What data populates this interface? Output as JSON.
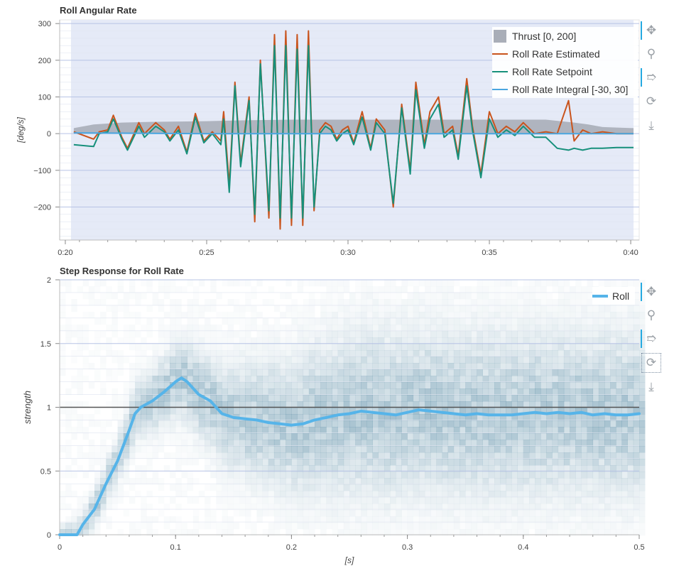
{
  "chart_data": [
    {
      "type": "line",
      "title": "Roll Angular Rate",
      "ylabel": "[deg/s]",
      "xlabel": "",
      "xlim": [
        19.8,
        40.3
      ],
      "ylim": [
        -290,
        310
      ],
      "x_ticks": [
        {
          "value": 20,
          "label": "0:20"
        },
        {
          "value": 25,
          "label": "0:25"
        },
        {
          "value": 30,
          "label": "0:30"
        },
        {
          "value": 35,
          "label": "0:35"
        },
        {
          "value": 40,
          "label": "0:40"
        }
      ],
      "y_ticks": [
        {
          "value": 300,
          "label": "300"
        },
        {
          "value": 200,
          "label": "200"
        },
        {
          "value": 100,
          "label": "100"
        },
        {
          "value": 0,
          "label": "0"
        },
        {
          "value": -100,
          "label": "−100"
        },
        {
          "value": -200,
          "label": "−200"
        }
      ],
      "highlight_region": [
        20.2,
        40.1
      ],
      "legend_position": "top-right",
      "series": [
        {
          "name": "Thrust [0, 200]",
          "kind": "area",
          "color": "#a9aeb8",
          "x": [
            20.3,
            21.0,
            22.0,
            23.0,
            24.0,
            25.0,
            25.5,
            26.0,
            27.0,
            28.0,
            29.0,
            30.0,
            31.0,
            32.0,
            33.0,
            34.0,
            35.0,
            36.0,
            37.0,
            38.0,
            38.5,
            39.0,
            40.1
          ],
          "y": [
            15,
            25,
            30,
            32,
            33,
            34,
            35,
            36,
            37,
            38,
            38,
            38,
            38,
            38,
            38,
            38,
            38,
            38,
            38,
            30,
            25,
            18,
            15
          ]
        },
        {
          "name": "Roll Rate Estimated",
          "kind": "line",
          "color": "#c9541d",
          "x": [
            20.3,
            21.0,
            21.2,
            21.5,
            21.7,
            22.0,
            22.2,
            22.6,
            22.8,
            23.2,
            23.5,
            23.7,
            24.0,
            24.3,
            24.6,
            24.9,
            25.2,
            25.5,
            25.6,
            25.8,
            26.0,
            26.2,
            26.5,
            26.7,
            26.9,
            27.2,
            27.4,
            27.6,
            27.8,
            28.0,
            28.2,
            28.4,
            28.6,
            28.8,
            29.0,
            29.2,
            29.4,
            29.6,
            29.8,
            30.0,
            30.2,
            30.5,
            30.8,
            31.0,
            31.3,
            31.6,
            31.9,
            32.2,
            32.4,
            32.7,
            32.9,
            33.2,
            33.4,
            33.7,
            33.9,
            34.2,
            34.4,
            34.7,
            35.0,
            35.3,
            35.6,
            35.9,
            36.2,
            36.6,
            37.0,
            37.4,
            37.8,
            38.0,
            38.3,
            38.6,
            39.0,
            39.5,
            40.1
          ],
          "y": [
            5,
            -15,
            5,
            10,
            50,
            -10,
            -40,
            30,
            0,
            30,
            10,
            -15,
            20,
            -50,
            55,
            -20,
            5,
            -20,
            60,
            -140,
            140,
            -80,
            100,
            -240,
            200,
            -230,
            270,
            -260,
            280,
            -250,
            270,
            -250,
            280,
            -210,
            10,
            30,
            20,
            -15,
            10,
            20,
            -25,
            60,
            -40,
            40,
            10,
            -200,
            80,
            -100,
            140,
            -30,
            60,
            100,
            0,
            20,
            -60,
            150,
            20,
            -110,
            60,
            0,
            20,
            5,
            30,
            0,
            5,
            0,
            90,
            -20,
            10,
            0,
            5,
            0,
            0
          ]
        },
        {
          "name": "Roll Rate Setpoint",
          "kind": "line",
          "color": "#16907b",
          "x": [
            20.3,
            21.0,
            21.2,
            21.5,
            21.7,
            22.0,
            22.2,
            22.6,
            22.8,
            23.2,
            23.5,
            23.7,
            24.0,
            24.3,
            24.6,
            24.9,
            25.2,
            25.5,
            25.6,
            25.8,
            26.0,
            26.2,
            26.5,
            26.7,
            26.9,
            27.2,
            27.4,
            27.6,
            27.8,
            28.0,
            28.2,
            28.4,
            28.6,
            28.8,
            29.0,
            29.2,
            29.4,
            29.6,
            29.8,
            30.0,
            30.2,
            30.5,
            30.8,
            31.0,
            31.3,
            31.6,
            31.9,
            32.2,
            32.4,
            32.7,
            32.9,
            33.2,
            33.4,
            33.7,
            33.9,
            34.2,
            34.4,
            34.7,
            35.0,
            35.3,
            35.6,
            35.9,
            36.2,
            36.6,
            37.0,
            37.4,
            37.8,
            38.0,
            38.3,
            38.6,
            39.0,
            39.5,
            40.1
          ],
          "y": [
            -30,
            -35,
            0,
            5,
            40,
            -15,
            -45,
            20,
            -10,
            20,
            5,
            -20,
            10,
            -55,
            45,
            -25,
            0,
            -30,
            40,
            -160,
            130,
            -90,
            90,
            -220,
            190,
            -210,
            240,
            -230,
            240,
            -230,
            230,
            -230,
            240,
            -200,
            0,
            20,
            10,
            -20,
            0,
            10,
            -30,
            45,
            -45,
            30,
            0,
            -190,
            70,
            -110,
            120,
            -40,
            40,
            80,
            -10,
            10,
            -70,
            130,
            10,
            -120,
            40,
            -10,
            10,
            -5,
            20,
            -10,
            -10,
            -40,
            -45,
            -40,
            -45,
            -40,
            -40,
            -38,
            -38
          ]
        },
        {
          "name": "Roll Rate Integral [-30, 30]",
          "kind": "line",
          "color": "#4aa6e0",
          "x": [
            20.3,
            25.0,
            30.0,
            35.0,
            40.1
          ],
          "y": [
            2,
            0,
            0,
            0,
            0
          ]
        }
      ]
    },
    {
      "type": "heatmap",
      "title": "Step Response for Roll Rate",
      "xlabel": "[s]",
      "ylabel": "strength",
      "xlim": [
        0,
        0.5
      ],
      "ylim": [
        0,
        2
      ],
      "x_ticks": [
        {
          "value": 0,
          "label": "0"
        },
        {
          "value": 0.1,
          "label": "0.1"
        },
        {
          "value": 0.2,
          "label": "0.2"
        },
        {
          "value": 0.3,
          "label": "0.3"
        },
        {
          "value": 0.4,
          "label": "0.4"
        },
        {
          "value": 0.5,
          "label": "0.5"
        }
      ],
      "y_ticks": [
        {
          "value": 0,
          "label": "0"
        },
        {
          "value": 0.5,
          "label": "0.5"
        },
        {
          "value": 1,
          "label": "1"
        },
        {
          "value": 1.5,
          "label": "1.5"
        },
        {
          "value": 2,
          "label": "2"
        }
      ],
      "reference_line": 1,
      "legend_position": "top-right",
      "series": [
        {
          "name": "Roll",
          "kind": "line",
          "color": "#56b4e9",
          "x": [
            0,
            0.015,
            0.02,
            0.03,
            0.04,
            0.05,
            0.06,
            0.065,
            0.07,
            0.08,
            0.09,
            0.1,
            0.105,
            0.11,
            0.12,
            0.13,
            0.14,
            0.15,
            0.16,
            0.17,
            0.18,
            0.19,
            0.2,
            0.21,
            0.22,
            0.23,
            0.24,
            0.25,
            0.26,
            0.27,
            0.28,
            0.29,
            0.3,
            0.31,
            0.32,
            0.33,
            0.34,
            0.35,
            0.36,
            0.37,
            0.38,
            0.39,
            0.4,
            0.41,
            0.42,
            0.43,
            0.44,
            0.45,
            0.46,
            0.47,
            0.48,
            0.49,
            0.5
          ],
          "y": [
            0,
            0,
            0.08,
            0.2,
            0.4,
            0.58,
            0.82,
            0.95,
            1.0,
            1.05,
            1.12,
            1.2,
            1.23,
            1.2,
            1.1,
            1.05,
            0.95,
            0.92,
            0.91,
            0.9,
            0.88,
            0.87,
            0.86,
            0.87,
            0.9,
            0.92,
            0.94,
            0.95,
            0.97,
            0.96,
            0.95,
            0.94,
            0.96,
            0.98,
            0.97,
            0.96,
            0.95,
            0.94,
            0.95,
            0.94,
            0.94,
            0.94,
            0.95,
            0.96,
            0.95,
            0.96,
            0.95,
            0.96,
            0.94,
            0.95,
            0.94,
            0.94,
            0.95
          ]
        }
      ]
    }
  ],
  "toolbar": {
    "icons": [
      "pan-icon",
      "box-zoom-icon",
      "lasso-icon",
      "reset-icon",
      "save-icon"
    ]
  }
}
